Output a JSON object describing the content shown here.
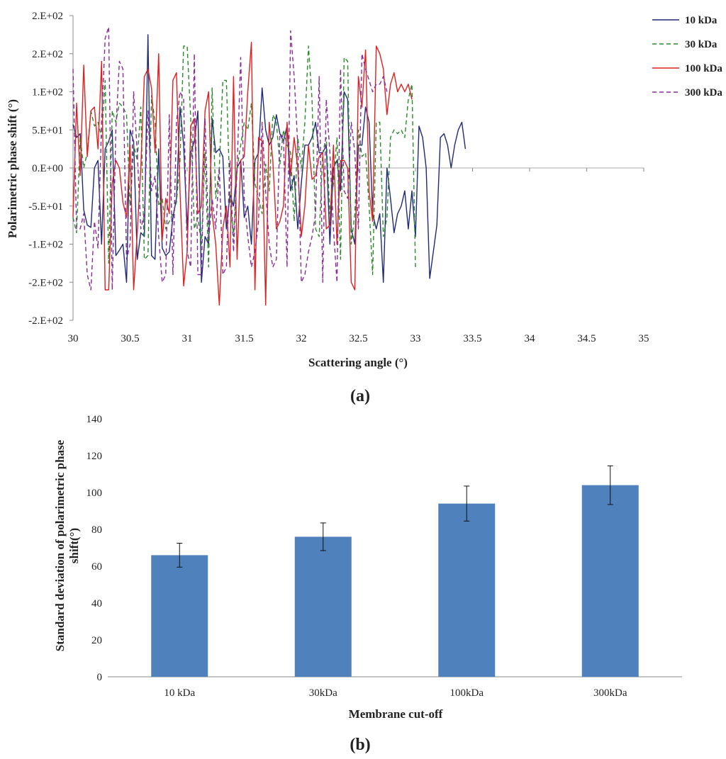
{
  "chart_data": [
    {
      "type": "line",
      "panel_label": "(a)",
      "xlabel": "Scattering angle (°)",
      "ylabel": "Polarimetric phase shift (°)",
      "xlim": [
        30,
        35
      ],
      "ylim": [
        -200,
        200
      ],
      "x_ticks": [
        {
          "value": 30,
          "label": "30"
        },
        {
          "value": 30.5,
          "label": "30.5"
        },
        {
          "value": 31,
          "label": "31"
        },
        {
          "value": 31.5,
          "label": "31.5"
        },
        {
          "value": 32,
          "label": "32"
        },
        {
          "value": 32.5,
          "label": "32.5"
        },
        {
          "value": 33,
          "label": "33"
        },
        {
          "value": 33.5,
          "label": "33.5"
        },
        {
          "value": 34,
          "label": "34"
        },
        {
          "value": 34.5,
          "label": "34.5"
        },
        {
          "value": 35,
          "label": "35"
        }
      ],
      "y_ticks": [
        {
          "value": 200,
          "label": "2.E+02"
        },
        {
          "value": 150,
          "label": "2.E+02"
        },
        {
          "value": 100,
          "label": "1.E+02"
        },
        {
          "value": 50,
          "label": "5.E+01"
        },
        {
          "value": 0,
          "label": "0.E+00"
        },
        {
          "value": -50,
          "label": "-5.E+01"
        },
        {
          "value": -100,
          "label": "-1.E+02"
        },
        {
          "value": -150,
          "label": "-2.E+02"
        },
        {
          "value": -200,
          "label": "-2.E+02"
        }
      ],
      "legend_position": "right",
      "x_step": 0.03125,
      "series": [
        {
          "name": "10 kDa",
          "color": "#1f2a7a",
          "dash": "solid",
          "values": [
            57,
            40,
            45,
            -55,
            -75,
            -78,
            0,
            10,
            -100,
            25,
            35,
            50,
            -115,
            -108,
            -100,
            -150,
            50,
            35,
            -120,
            -85,
            -90,
            175,
            -115,
            -120,
            25,
            -105,
            -115,
            -110,
            -65,
            -40,
            80,
            30,
            -80,
            20,
            35,
            75,
            -150,
            -90,
            -100,
            65,
            20,
            25,
            15,
            -80,
            -35,
            -50,
            0,
            10,
            -65,
            -50,
            -100,
            10,
            20,
            105,
            50,
            30,
            40,
            70,
            45,
            35,
            55,
            -30,
            -10,
            -80,
            -20,
            30,
            30,
            40,
            60,
            20,
            20,
            30,
            -100,
            0,
            10,
            -30,
            100,
            90,
            -80,
            -100,
            30,
            30,
            80,
            60,
            -60,
            -80,
            -60,
            -150,
            0,
            -40,
            -85,
            -60,
            -50,
            -30,
            -80,
            -30,
            -90,
            55,
            40,
            0,
            -145,
            -110,
            -75,
            40,
            45,
            30,
            0,
            30,
            50,
            60,
            25
          ]
        },
        {
          "name": "30 kDa",
          "color": "#2a8a2a",
          "dash": "6,4",
          "values": [
            -65,
            -85,
            40,
            0,
            20,
            75,
            55,
            60,
            40,
            115,
            -125,
            75,
            60,
            85,
            80,
            70,
            -50,
            30,
            10,
            80,
            -120,
            -115,
            95,
            60,
            -50,
            -40,
            -80,
            -70,
            -60,
            -45,
            10,
            160,
            160,
            65,
            -80,
            -65,
            -100,
            20,
            -130,
            105,
            -40,
            0,
            115,
            115,
            -40,
            -90,
            0,
            30,
            60,
            50,
            85,
            -20,
            -40,
            -60,
            5,
            -30,
            70,
            60,
            5,
            50,
            30,
            20,
            -70,
            40,
            0,
            60,
            160,
            90,
            -80,
            -90,
            20,
            40,
            -60,
            -20,
            40,
            -120,
            145,
            140,
            -100,
            -60,
            50,
            15,
            20,
            -50,
            -140,
            60,
            60,
            -90,
            -65,
            40,
            50,
            45,
            50,
            40,
            90,
            110,
            -130
          ]
        },
        {
          "name": "100 kDa",
          "color": "#e02020",
          "dash": "solid",
          "values": [
            -65,
            85,
            -10,
            135,
            15,
            75,
            80,
            25,
            140,
            -160,
            -160,
            -20,
            10,
            0,
            -45,
            -65,
            30,
            -160,
            -85,
            0,
            120,
            130,
            105,
            20,
            150,
            -95,
            -40,
            -60,
            115,
            125,
            -30,
            -155,
            -110,
            55,
            65,
            -60,
            -50,
            75,
            100,
            -60,
            -100,
            -180,
            -80,
            -50,
            -130,
            120,
            -120,
            10,
            15,
            100,
            165,
            -160,
            40,
            35,
            -180,
            60,
            10,
            -80,
            -70,
            -50,
            60,
            -10,
            40,
            0,
            -90,
            -50,
            30,
            -15,
            -10,
            15,
            20,
            -80,
            -75,
            30,
            -100,
            10,
            10,
            0,
            -150,
            -160,
            120,
            80,
            155,
            -30,
            -70,
            160,
            150,
            130,
            70,
            110,
            125,
            100,
            110,
            100,
            110,
            90
          ]
        },
        {
          "name": "300 kDa",
          "color": "#8a2a9a",
          "dash": "6,4",
          "values": [
            130,
            -80,
            -80,
            -60,
            -140,
            -160,
            -70,
            -105,
            60,
            170,
            185,
            -160,
            50,
            140,
            130,
            -120,
            -100,
            100,
            20,
            -80,
            -60,
            75,
            -30,
            -10,
            -90,
            -150,
            -140,
            70,
            -140,
            60,
            100,
            90,
            -110,
            -130,
            150,
            -140,
            -140,
            65,
            -95,
            -40,
            -80,
            0,
            -140,
            -130,
            10,
            -110,
            0,
            145,
            -40,
            -90,
            -130,
            -110,
            -70,
            60,
            -30,
            -100,
            -130,
            -120,
            45,
            40,
            -130,
            180,
            120,
            30,
            -150,
            -140,
            -110,
            -90,
            -60,
            120,
            -150,
            90,
            20,
            -80,
            -150,
            130,
            -30,
            -40,
            60,
            20,
            -80,
            150,
            130,
            115,
            100,
            110,
            110,
            120,
            100
          ]
        }
      ]
    },
    {
      "type": "bar",
      "panel_label": "(b)",
      "xlabel": "Membrane cut-off",
      "ylabel": "Standard deviation of polarimetric phase shift(°)",
      "ylabel_lines": [
        "Standard deviation of polarimetric phase",
        "shift(°)"
      ],
      "ylim": [
        0,
        140
      ],
      "y_ticks": [
        0,
        20,
        40,
        60,
        80,
        100,
        120,
        140
      ],
      "categories": [
        "10 kDa",
        "30kDa",
        "100kDa",
        "300kDa"
      ],
      "values": [
        66,
        76,
        94,
        104
      ],
      "error": [
        6.5,
        7.5,
        9.5,
        10.5
      ],
      "bar_color": "#4f81bd"
    }
  ]
}
